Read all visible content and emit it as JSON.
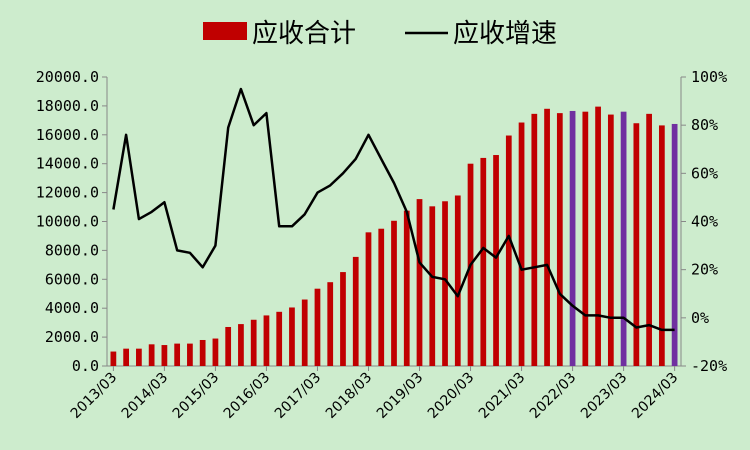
{
  "chart_data": {
    "type": "bar+line",
    "legend": {
      "placement": "top",
      "bar_label": "应收合计",
      "line_label": "应收增速"
    },
    "colors": {
      "bar": "#c00000",
      "bar_highlight": "#7030a0",
      "line": "#000000",
      "background": "#cdeccd"
    },
    "grid": false,
    "left_axis": {
      "range": [
        0,
        20000
      ],
      "ticks": [
        0,
        2000,
        4000,
        6000,
        8000,
        10000,
        12000,
        14000,
        16000,
        18000,
        20000
      ],
      "tick_labels": [
        "0.0",
        "2000.0",
        "4000.0",
        "6000.0",
        "8000.0",
        "10000.0",
        "12000.0",
        "14000.0",
        "16000.0",
        "18000.0",
        "20000.0"
      ]
    },
    "right_axis": {
      "range": [
        -20,
        100
      ],
      "ticks": [
        -20,
        0,
        20,
        40,
        60,
        80,
        100
      ],
      "tick_labels": [
        "-20%",
        "0%",
        "20%",
        "40%",
        "60%",
        "80%",
        "100%"
      ]
    },
    "x_labels": [
      "2013/03",
      "2014/03",
      "2015/03",
      "2016/03",
      "2017/03",
      "2018/03",
      "2019/03",
      "2020/03",
      "2021/03",
      "2022/03",
      "2023/03",
      "2024/03"
    ],
    "series": [
      {
        "name": "应收合计",
        "kind": "bar",
        "axis": "left",
        "values": [
          1000,
          1200,
          1200,
          1500,
          1450,
          1550,
          1550,
          1800,
          1900,
          2700,
          2900,
          3200,
          3500,
          3750,
          4050,
          4600,
          5350,
          5800,
          6500,
          7550,
          9250,
          9500,
          10050,
          10750,
          11550,
          11050,
          11400,
          11800,
          14000,
          14400,
          14600,
          15950,
          16850,
          17450,
          17800,
          17500,
          17650,
          17600,
          17950,
          17400,
          17600,
          16800,
          17450,
          16650,
          16750
        ],
        "highlight_indices": [
          36,
          40,
          44
        ]
      },
      {
        "name": "应收增速",
        "kind": "line",
        "axis": "right",
        "values": [
          45,
          76,
          41,
          44,
          48,
          28,
          27,
          21,
          30,
          79,
          95,
          80,
          85,
          38,
          38,
          43,
          52,
          55,
          60,
          66,
          76,
          66,
          56,
          44,
          23,
          17,
          16,
          9,
          22,
          29,
          25,
          34,
          20,
          21,
          22,
          10,
          5,
          1,
          1,
          0,
          0,
          -4,
          -3,
          -5,
          -5
        ]
      }
    ]
  }
}
